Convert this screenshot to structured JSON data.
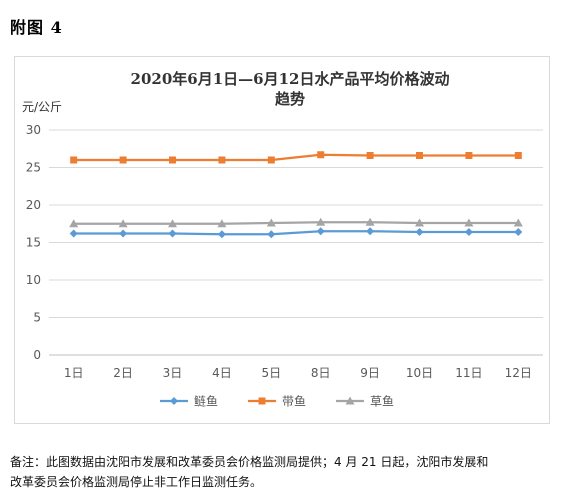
{
  "figure_label": "附图 4",
  "chart_data": {
    "type": "line",
    "title_lines": [
      "2020年6月1日—6月12日水产品平均价格波动",
      "趋势"
    ],
    "ylabel": "元/公斤",
    "xlabel": "",
    "categories": [
      "1日",
      "2日",
      "3日",
      "4日",
      "5日",
      "8日",
      "9日",
      "10日",
      "11日",
      "12日"
    ],
    "ylim": [
      0,
      30
    ],
    "yticks": [
      0,
      5,
      10,
      15,
      20,
      25,
      30
    ],
    "grid": true,
    "legend_position": "bottom",
    "series": [
      {
        "name": "鲢鱼",
        "color": "#5b9bd5",
        "marker": "diamond",
        "values": [
          16.2,
          16.2,
          16.2,
          16.1,
          16.1,
          16.5,
          16.5,
          16.4,
          16.4,
          16.4
        ]
      },
      {
        "name": "带鱼",
        "color": "#ed7d31",
        "marker": "square",
        "values": [
          26.0,
          26.0,
          26.0,
          26.0,
          26.0,
          26.7,
          26.6,
          26.6,
          26.6,
          26.6
        ]
      },
      {
        "name": "草鱼",
        "color": "#a5a5a5",
        "marker": "triangle",
        "values": [
          17.5,
          17.5,
          17.5,
          17.5,
          17.6,
          17.7,
          17.7,
          17.6,
          17.6,
          17.6
        ]
      }
    ]
  },
  "footnote_lines": [
    "备注：此图数据由沈阳市发展和改革委员会价格监测局提供；4 月 21 日起，沈阳市发展和",
    "改革委员会价格监测局停止非工作日监测任务。"
  ]
}
